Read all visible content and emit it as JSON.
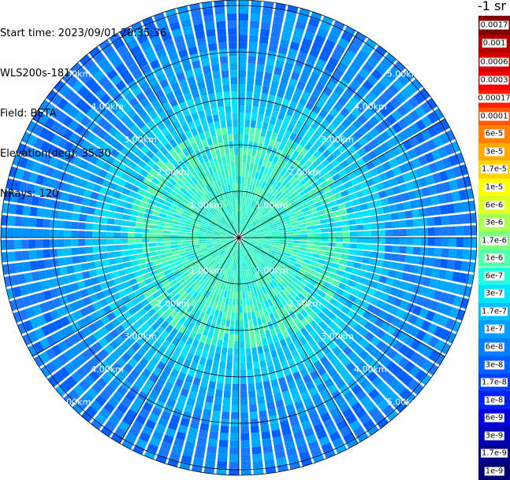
{
  "info": {
    "start_time": "Start time: 2023/09/01 20:35:36",
    "instrument": "WLS200s-181",
    "field": "Field: BETA",
    "elevation": "Elevation(deg): 35.30",
    "nrays": "NRays: 120"
  },
  "colorbar": {
    "unit": "-1 sr",
    "upper": {
      "labels": [
        "0.0017",
        "0.001",
        "0.0006",
        "0.0003"
      ],
      "colors": [
        "#800000",
        "#b00000",
        "#d40000",
        "#f00000"
      ]
    },
    "lower": {
      "labels": [
        "0.00017",
        "0.0001",
        "6e-5",
        "3e-5",
        "1.7e-5",
        "1e-5",
        "6e-6",
        "3e-6",
        "1.7e-6",
        "1e-6",
        "6e-7",
        "3e-7",
        "1.7e-7",
        "1e-7",
        "6e-8",
        "3e-8",
        "1.7e-8",
        "1e-8",
        "6e-9",
        "3e-9",
        "1.7e-9",
        "1e-9"
      ],
      "colors": [
        "#ff2000",
        "#ff5500",
        "#ff8000",
        "#ffaa00",
        "#ffd500",
        "#ffff00",
        "#ddff22",
        "#aaff55",
        "#80ff80",
        "#55ffaa",
        "#22ffdd",
        "#00e5ff",
        "#00c0ff",
        "#00a0ff",
        "#0080ff",
        "#0060ff",
        "#0040ff",
        "#0020f0",
        "#0000e0",
        "#0000b8",
        "#000090",
        "#000070"
      ]
    }
  },
  "range_rings": [
    {
      "label": "1.00km",
      "km": 1
    },
    {
      "label": "2.00km",
      "km": 2
    },
    {
      "label": "3.00km",
      "km": 3
    },
    {
      "label": "4.00km",
      "km": 4
    },
    {
      "label": "5.00km",
      "km": 5
    }
  ]
}
